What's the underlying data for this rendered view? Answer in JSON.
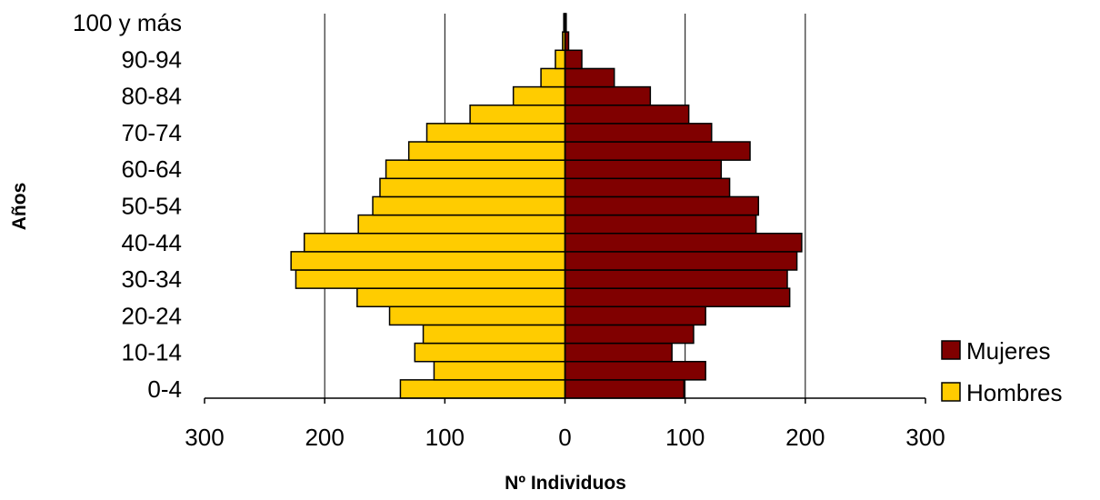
{
  "chart_data": {
    "type": "bar",
    "orientation": "horizontal",
    "subtype": "population-pyramid",
    "title": "",
    "xlabel": "Nº Individuos",
    "ylabel": "Años",
    "xlim": [
      -300,
      300
    ],
    "xticks": [
      -300,
      -200,
      -100,
      0,
      100,
      200,
      300
    ],
    "xtick_labels": [
      "300",
      "200",
      "100",
      "0",
      "100",
      "200",
      "300"
    ],
    "grid": "vertical",
    "legend_position": "right",
    "categories": [
      "0-4",
      "5-9",
      "10-14",
      "15-19",
      "20-24",
      "25-29",
      "30-34",
      "35-39",
      "40-44",
      "45-49",
      "50-54",
      "55-59",
      "60-64",
      "65-69",
      "70-74",
      "75-79",
      "80-84",
      "85-89",
      "90-94",
      "95-99",
      "100 y más"
    ],
    "category_labels_shown": [
      "0-4",
      "10-14",
      "20-24",
      "30-34",
      "40-44",
      "50-54",
      "60-64",
      "70-74",
      "80-84",
      "90-94",
      "100 y más"
    ],
    "series": [
      {
        "name": "Mujeres",
        "color": "#800000",
        "side": "right",
        "values": [
          99,
          117,
          89,
          107,
          117,
          187,
          185,
          193,
          197,
          159,
          161,
          137,
          130,
          154,
          122,
          103,
          71,
          41,
          14,
          3,
          1
        ]
      },
      {
        "name": "Hombres",
        "color": "#FFCC00",
        "side": "left",
        "values": [
          137,
          109,
          125,
          118,
          146,
          173,
          224,
          228,
          217,
          172,
          160,
          154,
          149,
          130,
          115,
          79,
          43,
          20,
          8,
          2,
          1
        ]
      }
    ]
  }
}
